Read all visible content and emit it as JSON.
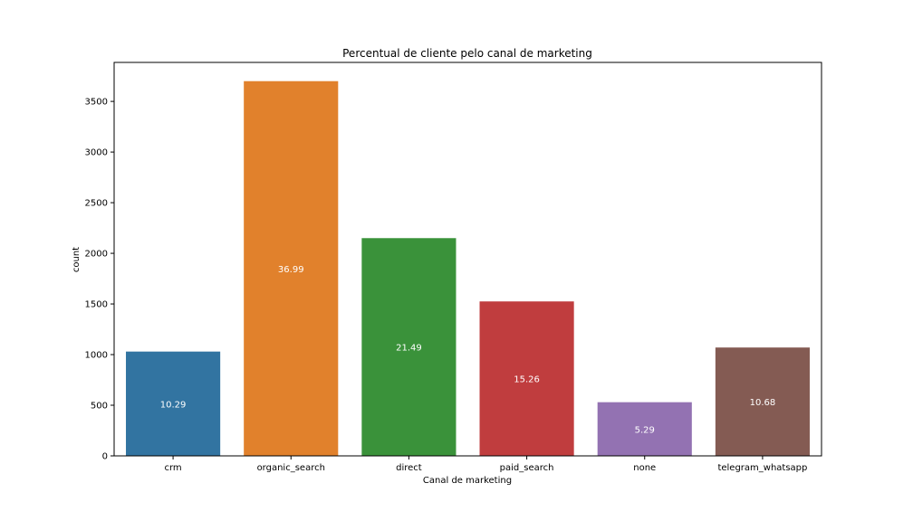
{
  "chart_data": {
    "type": "bar",
    "title": "Percentual de cliente pelo canal de marketing",
    "xlabel": "Canal de marketing",
    "ylabel": "count",
    "categories": [
      "crm",
      "organic_search",
      "direct",
      "paid_search",
      "none",
      "telegram_whatsapp"
    ],
    "values": [
      1030,
      3700,
      2150,
      1525,
      530,
      1070
    ],
    "data_labels": [
      "10.29",
      "36.99",
      "21.49",
      "15.26",
      "5.29",
      "10.68"
    ],
    "colors": [
      "#3274a1",
      "#e1812c",
      "#3a923a",
      "#c03d3e",
      "#9372b2",
      "#845b53"
    ],
    "ylim": [
      0,
      3885
    ],
    "yticks": [
      0,
      500,
      1000,
      1500,
      2000,
      2500,
      3000,
      3500
    ],
    "grid": false,
    "legend": "none"
  }
}
